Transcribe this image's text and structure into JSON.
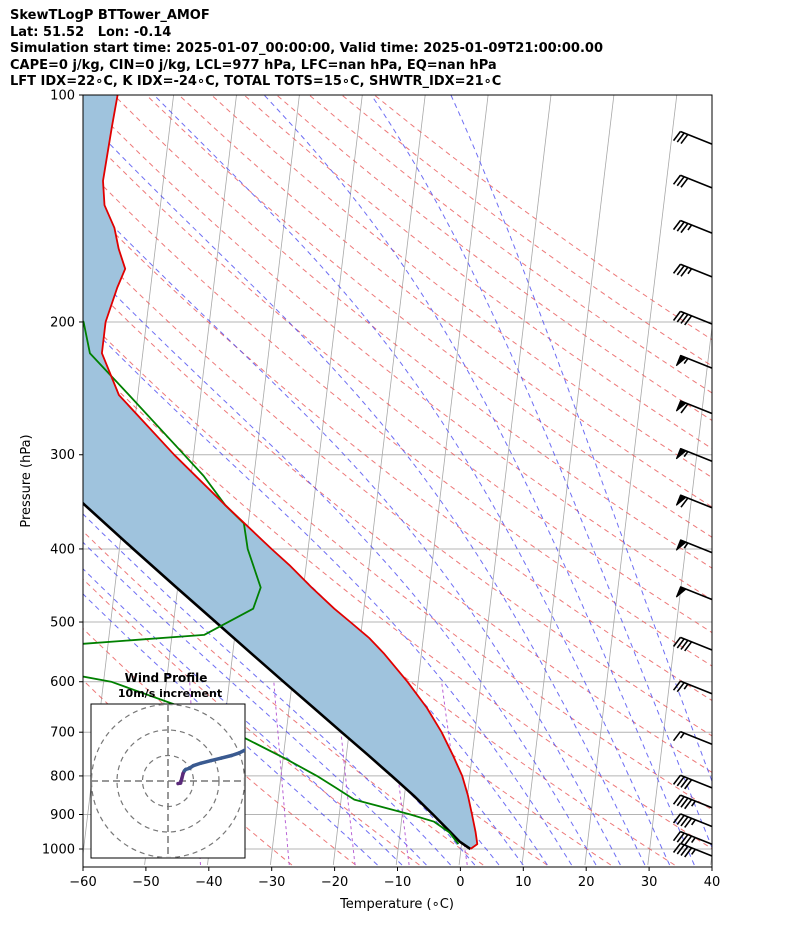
{
  "header": {
    "lines": [
      "SkewTLogP BTTower_AMOF",
      "Lat: 51.52   Lon: -0.14",
      "Simulation start time: 2025-01-07_00:00:00, Valid time: 2025-01-09T21:00:00.00",
      "CAPE=0 j/kg, CIN=0 j/kg, LCL=977 hPa, LFC=nan hPa, EQ=nan hPa",
      "LFT IDX=22∘C, K IDX=-24∘C, TOTAL TOTS=15∘C, SHWTR_IDX=21∘C"
    ]
  },
  "chart_data": {
    "type": "line",
    "title": "SkewTLogP BTTower_AMOF",
    "xlabel": "Temperature (∘C)",
    "ylabel": "Pressure (hPa)",
    "xlim": [
      -60,
      40
    ],
    "ylim": [
      1050,
      100
    ],
    "y_scale": "log",
    "x_ticks": [
      -60,
      -50,
      -40,
      -30,
      -20,
      -10,
      0,
      10,
      20,
      30,
      40
    ],
    "x_tick_labels": [
      "−60",
      "−50",
      "−40",
      "−30",
      "−20",
      "−10",
      "0",
      "10",
      "20",
      "30",
      "40"
    ],
    "y_ticks": [
      1000,
      900,
      800,
      700,
      600,
      500,
      400,
      300,
      200,
      100
    ],
    "y_tick_labels": [
      "1000",
      "900",
      "800",
      "700",
      "600",
      "500",
      "400",
      "300",
      "200",
      "100"
    ],
    "grid": true,
    "colors": {
      "temperature": "#e00000",
      "dewpoint": "#008000",
      "parcel": "#000000",
      "fill": "#9fc3dd",
      "dry_adiabat": "#e85858",
      "moist_adiabat": "#4a4af0",
      "mixing_ratio": "#b050d0",
      "isotherm": "#a8a8a8",
      "hodograph": "#3a5a90",
      "hodograph_low": "#5a2a7a"
    },
    "series": [
      {
        "name": "Temperature",
        "p": [
          1000,
          985,
          950,
          900,
          850,
          800,
          750,
          700,
          650,
          600,
          550,
          525,
          500,
          480,
          450,
          420,
          400,
          350,
          300,
          250,
          220,
          200,
          180,
          170,
          160,
          150,
          140,
          130,
          120,
          110,
          100
        ],
        "t": [
          1.5,
          2.5,
          2.0,
          1.1,
          0.1,
          -1.2,
          -3.1,
          -5.3,
          -8.1,
          -11.7,
          -16.0,
          -18.6,
          -21.9,
          -24.7,
          -28.7,
          -32.7,
          -35.8,
          -44.0,
          -53.1,
          -63.0,
          -66.5,
          -66.5,
          -65.3,
          -64.4,
          -65.8,
          -66.9,
          -68.9,
          -69.6,
          -69.4,
          -69.2,
          -68.9
        ]
      },
      {
        "name": "Dewpoint",
        "p": [
          985,
          950,
          920,
          900,
          860,
          830,
          800,
          760,
          700,
          650,
          600,
          550,
          520,
          480,
          450,
          400,
          370,
          350,
          320,
          300,
          250,
          220,
          200,
          180,
          160,
          150,
          120,
          100
        ],
        "t": [
          -0.5,
          -2.2,
          -4.8,
          -8.7,
          -17.9,
          -21.0,
          -24.3,
          -29.5,
          -38.4,
          -46.7,
          -58.8,
          -84.0,
          -44.9,
          -37.6,
          -36.8,
          -39.6,
          -40.7,
          -44.0,
          -48.0,
          -51.5,
          -61.4,
          -68.4,
          -70.0,
          -75.3,
          -79.6,
          -79.2,
          -76.3,
          -74.8
        ]
      },
      {
        "name": "Parcel",
        "p": [
          1000,
          977,
          950,
          900,
          850,
          800,
          750,
          700,
          650,
          600,
          550,
          500,
          450,
          400,
          350,
          300,
          250,
          200,
          150,
          100
        ],
        "t": [
          1.5,
          -0.4,
          -2.0,
          -5.1,
          -8.5,
          -12.4,
          -16.6,
          -21.2,
          -26.1,
          -31.4,
          -37.1,
          -43.3,
          -50.2,
          -57.8,
          -66.3,
          -75.8,
          -86.8,
          -100.3,
          -117.4,
          -141.2
        ]
      }
    ],
    "wind_barbs": [
      {
        "p": 985,
        "speed": 45,
        "dir": 256
      },
      {
        "p": 950,
        "speed": 45,
        "dir": 250
      },
      {
        "p": 900,
        "speed": 45,
        "dir": 240
      },
      {
        "p": 850,
        "speed": 45,
        "dir": 260
      },
      {
        "p": 800,
        "speed": 40,
        "dir": 250
      },
      {
        "p": 700,
        "speed": 15,
        "dir": 275
      },
      {
        "p": 600,
        "speed": 25,
        "dir": 285
      },
      {
        "p": 525,
        "speed": 40,
        "dir": 290
      },
      {
        "p": 450,
        "speed": 50,
        "dir": 295
      },
      {
        "p": 390,
        "speed": 55,
        "dir": 295
      },
      {
        "p": 340,
        "speed": 60,
        "dir": 295
      },
      {
        "p": 295,
        "speed": 55,
        "dir": 295
      },
      {
        "p": 255,
        "speed": 60,
        "dir": 295
      },
      {
        "p": 222,
        "speed": 55,
        "dir": 295
      },
      {
        "p": 194,
        "speed": 40,
        "dir": 290
      },
      {
        "p": 168,
        "speed": 35,
        "dir": 290
      },
      {
        "p": 147,
        "speed": 35,
        "dir": 290
      },
      {
        "p": 128,
        "speed": 30,
        "dir": 290
      },
      {
        "p": 112,
        "speed": 30,
        "dir": 290
      }
    ],
    "hodograph": {
      "title": "Wind Profile",
      "subtitle": "10m/s increment",
      "rings_ms": [
        10,
        20,
        30
      ],
      "u": [
        0.0,
        1.0,
        1.5,
        2.0,
        2.5,
        3.0,
        4.5,
        6.0,
        9.0,
        13.0,
        17.0,
        21.0,
        24.0,
        26.0,
        28.0
      ],
      "v": [
        1.0,
        0.8,
        -1.0,
        -3.0,
        -4.0,
        -4.5,
        -5.0,
        -6.0,
        -7.0,
        -8.0,
        -9.0,
        -10.0,
        -11.0,
        -12.0,
        -13.0
      ]
    }
  }
}
